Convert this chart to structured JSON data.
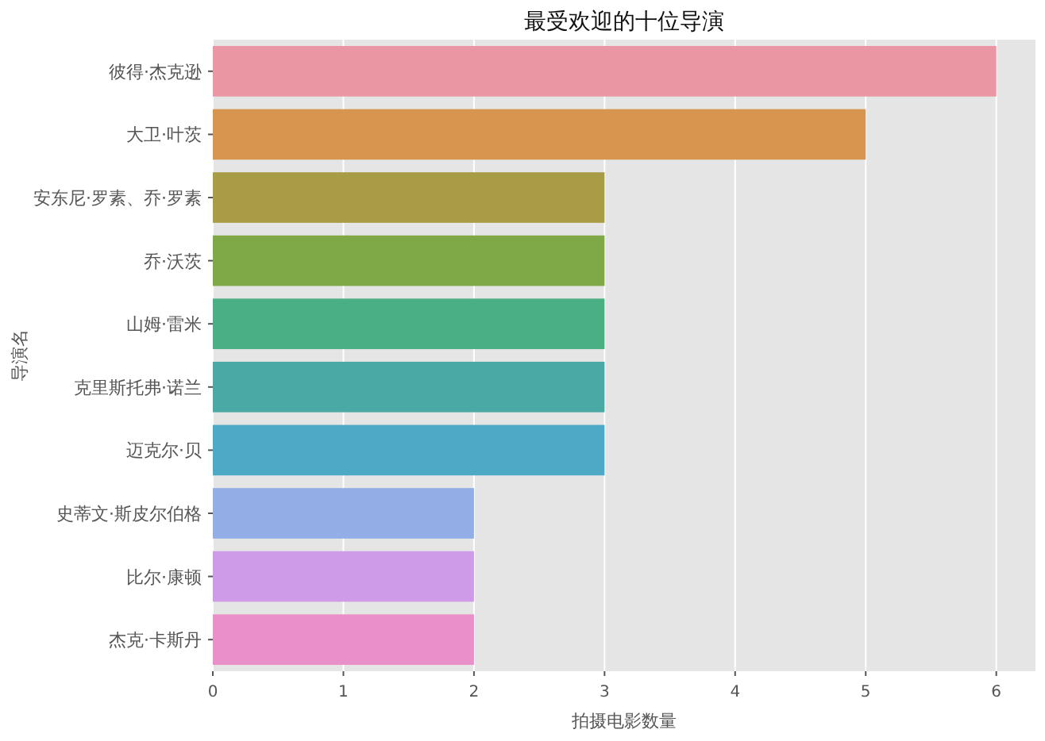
{
  "chart_data": {
    "type": "bar",
    "orientation": "horizontal",
    "title": "最受欢迎的十位导演",
    "xlabel": "拍摄电影数量",
    "ylabel": "导演名",
    "categories": [
      "彼得·杰克逊",
      "大卫·叶茨",
      "安东尼·罗素、乔·罗素",
      "乔·沃茨",
      "山姆·雷米",
      "克里斯托弗·诺兰",
      "迈克尔·贝",
      "史蒂文·斯皮尔伯格",
      "比尔·康顿",
      "杰克·卡斯丹"
    ],
    "values": [
      6,
      5,
      3,
      3,
      3,
      3,
      3,
      2,
      2,
      2
    ],
    "colors": [
      "#ea96a3",
      "#d89550",
      "#a89c47",
      "#7fa947",
      "#4aaf82",
      "#4aa9a5",
      "#4ea9c7",
      "#93aee6",
      "#cd9be8",
      "#ea90c9"
    ],
    "xlim": [
      0,
      6.3
    ],
    "xticks": [
      0,
      1,
      2,
      3,
      4,
      5,
      6
    ],
    "grid": "x"
  }
}
